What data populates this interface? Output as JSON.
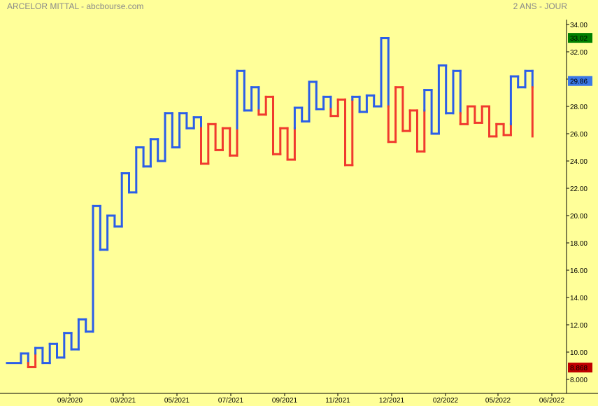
{
  "header": {
    "title": "ARCELOR MITTAL - abcbourse.com",
    "period": "2 ANS - JOUR"
  },
  "chart_data": {
    "type": "line",
    "style": "kagi",
    "ylim": [
      8,
      34
    ],
    "yticks": [
      "8.000",
      "10.00",
      "12.00",
      "14.00",
      "16.00",
      "18.00",
      "20.00",
      "22.00",
      "24.00",
      "26.00",
      "28.00",
      "30.00",
      "32.00",
      "34.00"
    ],
    "xticks": [
      "09/2020",
      "03/2021",
      "05/2021",
      "07/2021",
      "09/2021",
      "11/2021",
      "12/2021",
      "02/2022",
      "05/2022",
      "06/2022"
    ],
    "up_color": "#2b5ee8",
    "down_color": "#f03a2e",
    "levels": [
      9.2,
      9.9,
      8.9,
      10.3,
      9.2,
      10.6,
      9.6,
      11.4,
      10.2,
      12.4,
      11.5,
      20.7,
      17.5,
      20.0,
      19.2,
      23.1,
      21.7,
      25.0,
      23.6,
      25.6,
      24.0,
      27.5,
      25.0,
      27.5,
      26.4,
      27.2,
      23.8,
      26.7,
      24.8,
      26.4,
      24.4,
      30.6,
      27.7,
      29.4,
      27.4,
      28.7,
      24.5,
      26.4,
      24.1,
      27.9,
      26.9,
      29.8,
      27.8,
      28.7,
      27.3,
      28.5,
      23.7,
      28.7,
      27.6,
      28.8,
      28.0,
      33.0,
      25.4,
      29.4,
      26.2,
      27.7,
      24.7,
      29.2,
      26.0,
      31.0,
      27.5,
      30.6,
      26.7,
      28.0,
      26.8,
      28.0,
      25.8,
      26.7,
      25.9,
      30.2,
      29.4,
      30.6,
      25.8
    ],
    "annotations": [
      {
        "label": "33.02",
        "value": 33.02,
        "color": "#008000"
      },
      {
        "label": "29.86",
        "value": 29.86,
        "color": "#3b78e7"
      },
      {
        "label": "8.868",
        "value": 8.868,
        "color": "#c00000"
      }
    ]
  }
}
